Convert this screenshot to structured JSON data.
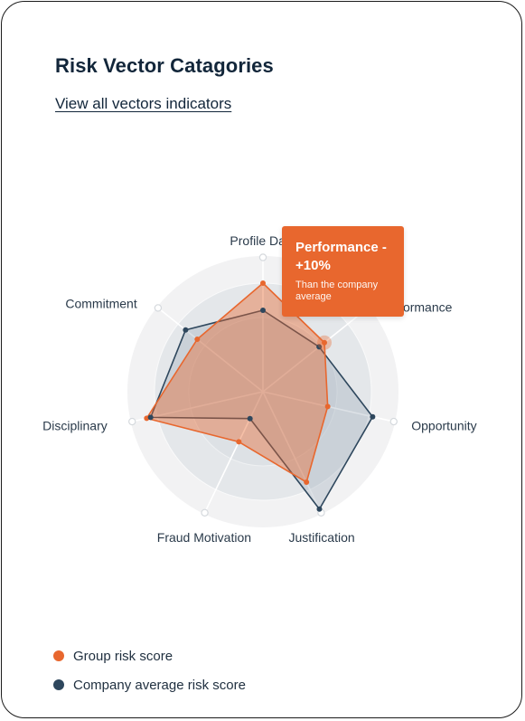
{
  "header": {
    "title": "Risk Vector Catagories",
    "link": "View all vectors indicators"
  },
  "tooltip": {
    "title": "Performance - +10%",
    "subtitle": "Than the company average"
  },
  "colors": {
    "group": "#e8672e",
    "company": "#2e475d",
    "ring_outer": "#f2f2f3",
    "ring_inner": "#e4e7ea"
  },
  "chart_data": {
    "type": "radar",
    "categories": [
      "Profile Data",
      "Performance",
      "Opportunity",
      "Justification",
      "Fraud Motivation",
      "Disciplinary",
      "Commitment"
    ],
    "rlim": [
      0,
      10
    ],
    "series": [
      {
        "name": "Group risk score",
        "values": [
          8,
          5.8,
          4.9,
          7.4,
          4.1,
          8.8,
          6.2
        ]
      },
      {
        "name": "Company average risk score",
        "values": [
          6,
          5.3,
          8.3,
          9.6,
          2.2,
          8.5,
          7.3
        ]
      }
    ],
    "highlighted_category": "Performance"
  },
  "legend": [
    {
      "label": "Group risk score",
      "color": "#e8672e"
    },
    {
      "label": "Company average risk score",
      "color": "#2e475d"
    }
  ]
}
